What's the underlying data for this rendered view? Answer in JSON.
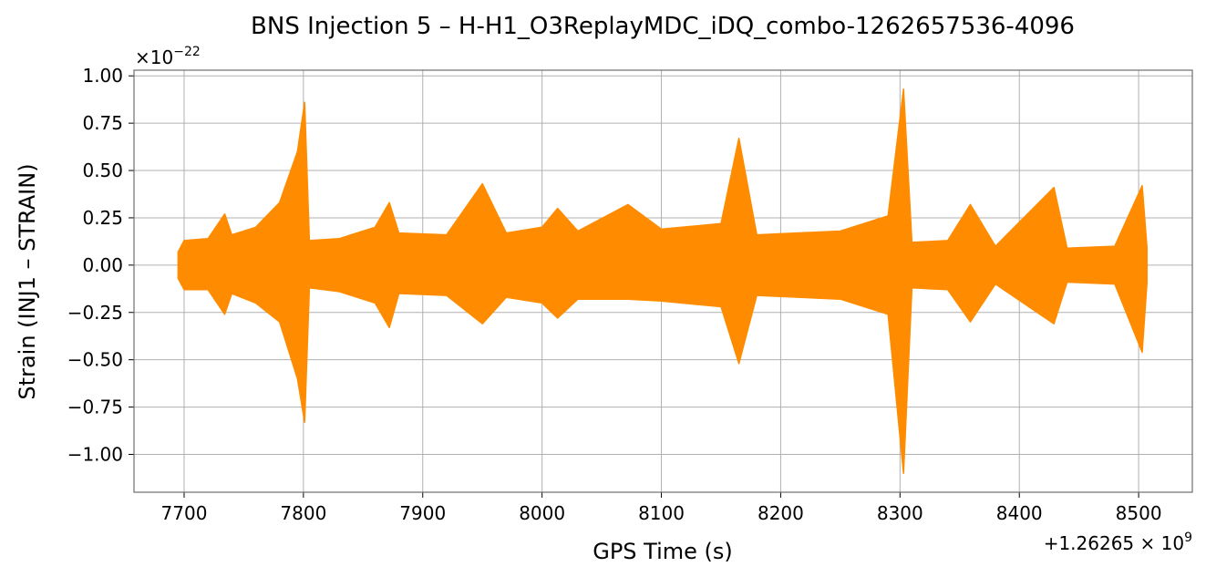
{
  "chart_data": {
    "type": "line",
    "title": "BNS Injection 5 – H-H1_O3ReplayMDC_iDQ_combo-1262657536-4096",
    "xlabel": "GPS Time (s)",
    "ylabel": "Strain (INJ1 – STRAIN)",
    "x_offset_label": "+1.26265 × 10",
    "x_offset_exponent": "9",
    "y_multiplier_label": "×10",
    "y_multiplier_exponent": "−22",
    "xlim": [
      7658,
      8545
    ],
    "ylim": [
      -1.2,
      1.03
    ],
    "grid": true,
    "color": "#ff8c00",
    "xticks": [
      7700,
      7800,
      7900,
      8000,
      8100,
      8200,
      8300,
      8400,
      8500
    ],
    "xtick_labels": [
      "7700",
      "7800",
      "7900",
      "8000",
      "8100",
      "8200",
      "8300",
      "8400",
      "8500"
    ],
    "yticks": [
      1.0,
      0.75,
      0.5,
      0.25,
      0.0,
      -0.25,
      -0.5,
      -0.75,
      -1.0
    ],
    "ytick_labels": [
      "1.00",
      "0.75",
      "0.50",
      "0.25",
      "0.00",
      "−0.25",
      "−0.50",
      "−0.75",
      "−1.00"
    ],
    "envelope": [
      {
        "x": 7695,
        "upper": 0.07,
        "lower": -0.07
      },
      {
        "x": 7700,
        "upper": 0.13,
        "lower": -0.13
      },
      {
        "x": 7720,
        "upper": 0.14,
        "lower": -0.13
      },
      {
        "x": 7734,
        "upper": 0.27,
        "lower": -0.26
      },
      {
        "x": 7740,
        "upper": 0.16,
        "lower": -0.15
      },
      {
        "x": 7760,
        "upper": 0.2,
        "lower": -0.2
      },
      {
        "x": 7780,
        "upper": 0.33,
        "lower": -0.3
      },
      {
        "x": 7795,
        "upper": 0.6,
        "lower": -0.6
      },
      {
        "x": 7801,
        "upper": 0.86,
        "lower": -0.83
      },
      {
        "x": 7805,
        "upper": 0.13,
        "lower": -0.12
      },
      {
        "x": 7830,
        "upper": 0.14,
        "lower": -0.14
      },
      {
        "x": 7860,
        "upper": 0.2,
        "lower": -0.2
      },
      {
        "x": 7872,
        "upper": 0.33,
        "lower": -0.33
      },
      {
        "x": 7880,
        "upper": 0.17,
        "lower": -0.15
      },
      {
        "x": 7920,
        "upper": 0.16,
        "lower": -0.16
      },
      {
        "x": 7950,
        "upper": 0.43,
        "lower": -0.31
      },
      {
        "x": 7970,
        "upper": 0.17,
        "lower": -0.17
      },
      {
        "x": 8000,
        "upper": 0.2,
        "lower": -0.2
      },
      {
        "x": 8013,
        "upper": 0.3,
        "lower": -0.28
      },
      {
        "x": 8030,
        "upper": 0.18,
        "lower": -0.18
      },
      {
        "x": 8072,
        "upper": 0.32,
        "lower": -0.18
      },
      {
        "x": 8100,
        "upper": 0.19,
        "lower": -0.19
      },
      {
        "x": 8150,
        "upper": 0.22,
        "lower": -0.22
      },
      {
        "x": 8165,
        "upper": 0.67,
        "lower": -0.52
      },
      {
        "x": 8180,
        "upper": 0.16,
        "lower": -0.16
      },
      {
        "x": 8250,
        "upper": 0.18,
        "lower": -0.18
      },
      {
        "x": 8290,
        "upper": 0.26,
        "lower": -0.26
      },
      {
        "x": 8303,
        "upper": 0.93,
        "lower": -1.1
      },
      {
        "x": 8310,
        "upper": 0.12,
        "lower": -0.12
      },
      {
        "x": 8340,
        "upper": 0.13,
        "lower": -0.13
      },
      {
        "x": 8359,
        "upper": 0.32,
        "lower": -0.3
      },
      {
        "x": 8380,
        "upper": 0.1,
        "lower": -0.1
      },
      {
        "x": 8429,
        "upper": 0.41,
        "lower": -0.31
      },
      {
        "x": 8440,
        "upper": 0.09,
        "lower": -0.09
      },
      {
        "x": 8480,
        "upper": 0.1,
        "lower": -0.1
      },
      {
        "x": 8503,
        "upper": 0.42,
        "lower": -0.46
      },
      {
        "x": 8507,
        "upper": 0.09,
        "lower": -0.09
      }
    ]
  }
}
